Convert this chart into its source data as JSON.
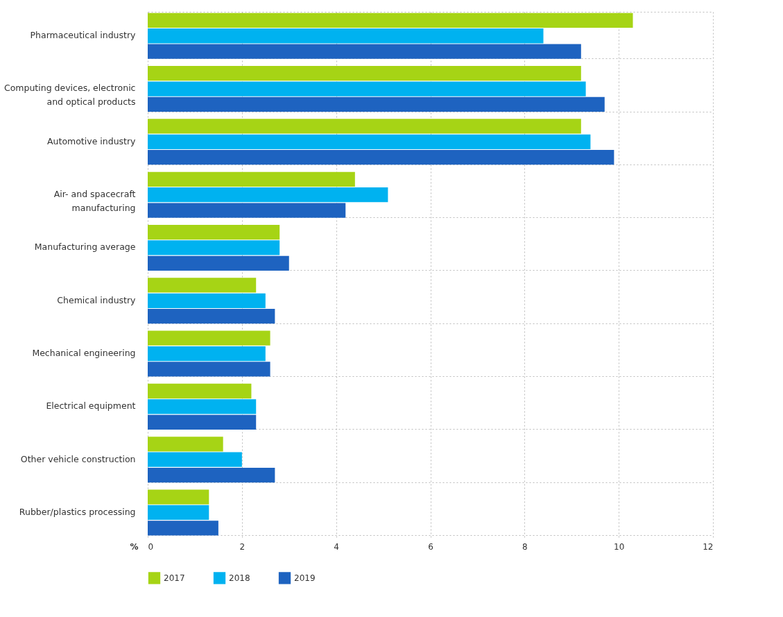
{
  "chart_data": {
    "type": "bar",
    "orientation": "horizontal",
    "xlabel": "%",
    "categories": [
      "Pharmaceutical industry",
      "Computing devices, electronic\nand optical products",
      "Automotive industry",
      "Air- and spacecraft\nmanufacturing",
      "Manufacturing average",
      "Chemical industry",
      "Mechanical engineering",
      "Electrical equipment",
      "Other vehicle construction",
      "Rubber/plastics processing"
    ],
    "series": [
      {
        "name": "2017",
        "color": "#a6d415",
        "values": [
          10.3,
          9.2,
          9.2,
          4.4,
          2.8,
          2.3,
          2.6,
          2.2,
          1.6,
          1.3
        ]
      },
      {
        "name": "2018",
        "color": "#00b2f0",
        "values": [
          8.4,
          9.3,
          9.4,
          5.1,
          2.8,
          2.5,
          2.5,
          2.3,
          2.0,
          1.3
        ]
      },
      {
        "name": "2019",
        "color": "#1e63c0",
        "values": [
          9.2,
          9.7,
          9.9,
          4.2,
          3.0,
          2.7,
          2.6,
          2.3,
          2.7,
          1.5
        ]
      }
    ],
    "xlim": [
      0,
      12
    ],
    "xticks": [
      0,
      2,
      4,
      6,
      8,
      10,
      12
    ],
    "grid": true,
    "legend": "bottom"
  }
}
